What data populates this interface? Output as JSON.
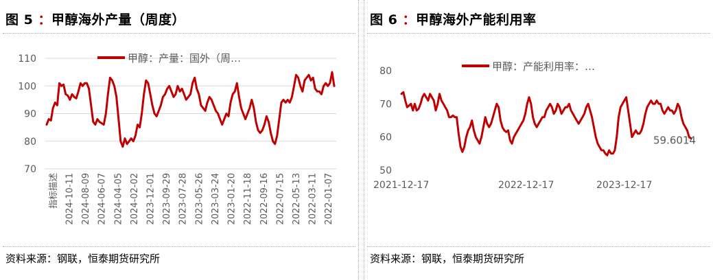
{
  "left_panel": {
    "title_prefix": "图 5",
    "title_sep": "：",
    "title_text": "甲醇海外产量（周度）",
    "source": "资料来源：钢联，恒泰期货研究所"
  },
  "right_panel": {
    "title_prefix": "图 6",
    "title_sep": "：",
    "title_text": "甲醇海外产能利用率",
    "source": "资料来源：钢联，恒泰期货研究所"
  },
  "colors": {
    "series": "#c00000",
    "grid": "#d9d9d9",
    "text": "#595959"
  },
  "chart_data": [
    {
      "type": "line",
      "legend": "甲醇：产量：国外（周…",
      "legend_position": "top",
      "grid": "horizontal",
      "ylim": [
        70,
        110
      ],
      "yticks": [
        70,
        80,
        90,
        100,
        110
      ],
      "x_axis_order": "newest-left",
      "xticks": [
        "指标描述",
        "2024-10-11",
        "2024-08-09",
        "2024-06-07",
        "2024-04-05",
        "2024-02-02",
        "2023-12-01",
        "2023-09-29",
        "2023-07-28",
        "2023-05-26",
        "2023-03-24",
        "2023-01-20",
        "2022-11-18",
        "2022-09-16",
        "2022-07-15",
        "2022-05-13",
        "2022-03-11",
        "2022-01-07"
      ],
      "series": [
        {
          "values": [
            86,
            88,
            87.5,
            92,
            94,
            93,
            101,
            100,
            100.5,
            97,
            96.5,
            95,
            97,
            96,
            95.5,
            98,
            101,
            100,
            101,
            101,
            99,
            93,
            87,
            86,
            88,
            87,
            86.5,
            86,
            90,
            97,
            103,
            102,
            100,
            96,
            88,
            80,
            78,
            81,
            79,
            80,
            81,
            80,
            82,
            86,
            85,
            90,
            97,
            102,
            101,
            97,
            93,
            90,
            89,
            91,
            93,
            96,
            97,
            99,
            100,
            98,
            96,
            97,
            100,
            98,
            99,
            97,
            95,
            96,
            97,
            101,
            103,
            99,
            97,
            93,
            92,
            91,
            94,
            96,
            95,
            93,
            91,
            90,
            88,
            86,
            88,
            90,
            89,
            94,
            97,
            98,
            101,
            96,
            92,
            90,
            88,
            90,
            92,
            95,
            92,
            87,
            84,
            83,
            84,
            86,
            89,
            87,
            83,
            80,
            79,
            82,
            88,
            94,
            95,
            94,
            95,
            94,
            96,
            100,
            104,
            103,
            100,
            98,
            102,
            103,
            104,
            102,
            103,
            99,
            98,
            98,
            97,
            100,
            101,
            100,
            101,
            105,
            100
          ]
        }
      ]
    },
    {
      "type": "line",
      "legend": "甲醇：产能利用率：…",
      "legend_position": "top",
      "grid": "none",
      "ylim": [
        50,
        80
      ],
      "yticks": [
        50,
        60,
        70,
        80
      ],
      "xticks": [
        "2021-12-17",
        "2022-12-17",
        "2023-12-17"
      ],
      "last_value_label": "59.6014",
      "series": [
        {
          "values": [
            73,
            73.5,
            71,
            69,
            69.5,
            70,
            68,
            70,
            68,
            68.5,
            70,
            72,
            73,
            72,
            71,
            73,
            72,
            71,
            68,
            70,
            73,
            71,
            70,
            69,
            68,
            66,
            66,
            66.5,
            66,
            66,
            61,
            57,
            55.5,
            57,
            60,
            62,
            63,
            65,
            62,
            60,
            59,
            58,
            60,
            63,
            66,
            64,
            63,
            64,
            66,
            68,
            70,
            69,
            65,
            63,
            62,
            61.5,
            62,
            59,
            58,
            60,
            61,
            62,
            63,
            64,
            65,
            67,
            70,
            72,
            70,
            66,
            64,
            63,
            64,
            65,
            66,
            66,
            68,
            69,
            70,
            69,
            67,
            68,
            70,
            69,
            67,
            68,
            69,
            69,
            70,
            68,
            67,
            66,
            65,
            64,
            65,
            66,
            67,
            69,
            70,
            68,
            66,
            63,
            60,
            58,
            57,
            56,
            56,
            55,
            54.5,
            56,
            55,
            55,
            56,
            60,
            66,
            69,
            70,
            71,
            72,
            68,
            64,
            60,
            61,
            62,
            61,
            61,
            62,
            64,
            67,
            69,
            70,
            71,
            70,
            70,
            71,
            70,
            70,
            68,
            67,
            68,
            69,
            68,
            68,
            67,
            68,
            70,
            69,
            66,
            64,
            63,
            62,
            60,
            59.6014
          ]
        }
      ]
    }
  ]
}
